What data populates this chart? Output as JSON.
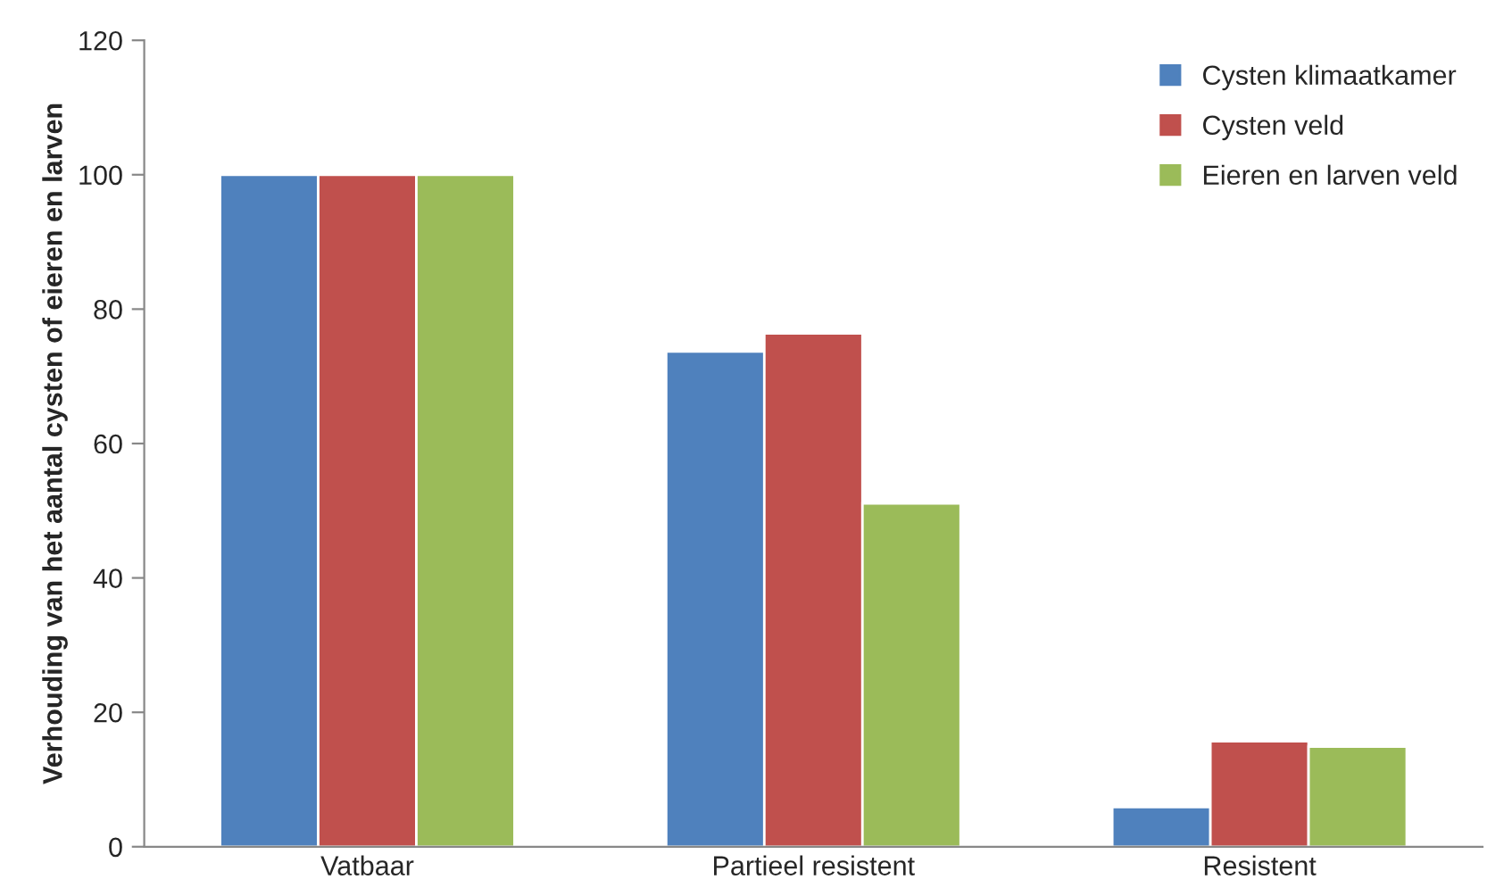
{
  "chart_data": {
    "type": "bar",
    "ylabel": "Verhouding van het aantal cysten of eieren en larven",
    "categories": [
      "Vatbaar",
      "Partieel resistent",
      "Resistent"
    ],
    "series": [
      {
        "name": "Cysten klimaatkamer",
        "color": "#4f81bd",
        "values": [
          100,
          73.7,
          5.9
        ]
      },
      {
        "name": "Cysten veld",
        "color": "#c0504d",
        "values": [
          100,
          76.4,
          15.7
        ]
      },
      {
        "name": "Eieren en larven veld",
        "color": "#9bbb59",
        "values": [
          100,
          51.1,
          14.9
        ]
      }
    ],
    "ylim": [
      0,
      120
    ],
    "yticks": [
      0,
      20,
      40,
      60,
      80,
      100,
      120
    ],
    "grid": false,
    "legend": "top right"
  }
}
